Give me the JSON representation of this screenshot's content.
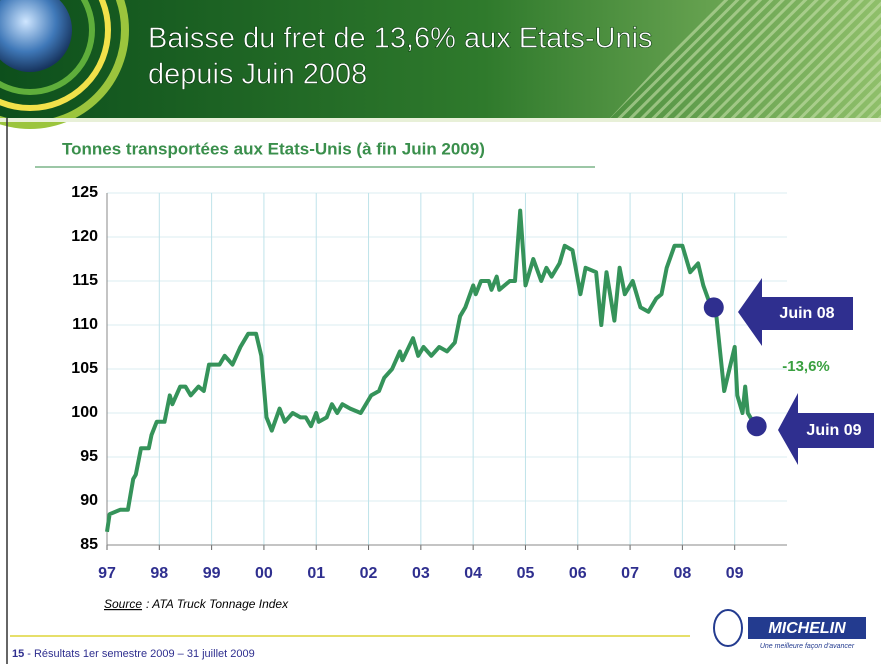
{
  "header": {
    "title_lines": [
      "Baisse du fret de 13,6% aux Etats-Unis",
      "depuis Juin 2008"
    ]
  },
  "chart_data": {
    "type": "line",
    "title": "Tonnes transportées aux Etats-Unis (à fin Juin 2009)",
    "x": [
      1997.0,
      1997.05,
      1997.25,
      1997.4,
      1997.5,
      1997.55,
      1997.65,
      1997.8,
      1997.85,
      1997.95,
      1998.1,
      1998.2,
      1998.25,
      1998.4,
      1998.5,
      1998.6,
      1998.75,
      1998.85,
      1998.95,
      1999.15,
      1999.25,
      1999.4,
      1999.55,
      1999.7,
      1999.85,
      1999.95,
      2000.05,
      2000.15,
      2000.3,
      2000.4,
      2000.55,
      2000.7,
      2000.8,
      2000.9,
      2001.0,
      2001.05,
      2001.2,
      2001.3,
      2001.4,
      2001.5,
      2001.65,
      2001.85,
      2002.05,
      2002.2,
      2002.3,
      2002.45,
      2002.6,
      2002.65,
      2002.85,
      2002.95,
      2003.05,
      2003.2,
      2003.35,
      2003.5,
      2003.65,
      2003.75,
      2003.85,
      2004.0,
      2004.05,
      2004.15,
      2004.3,
      2004.35,
      2004.45,
      2004.5,
      2004.7,
      2004.8,
      2004.9,
      2005.0,
      2005.15,
      2005.3,
      2005.4,
      2005.5,
      2005.65,
      2005.75,
      2005.9,
      2006.05,
      2006.15,
      2006.35,
      2006.45,
      2006.55,
      2006.7,
      2006.8,
      2006.9,
      2007.05,
      2007.2,
      2007.35,
      2007.5,
      2007.6,
      2007.7,
      2007.85,
      2008.0,
      2008.15,
      2008.3,
      2008.4,
      2008.55,
      2008.65,
      2008.8,
      2009.0,
      2009.05,
      2009.15,
      2009.2,
      2009.25,
      2009.4
    ],
    "series": [
      {
        "name": "Truck Tonnage",
        "color": "#35935a",
        "values": [
          86.5,
          88.5,
          89,
          89,
          92.5,
          93,
          96,
          96,
          97.5,
          99,
          99,
          102,
          101,
          103,
          103,
          102,
          103,
          102.5,
          105.5,
          105.5,
          106.5,
          105.5,
          107.5,
          109,
          109,
          106.5,
          99.5,
          98,
          100.5,
          99,
          100,
          99.5,
          99.5,
          98.5,
          100,
          99,
          99.5,
          101,
          100,
          101,
          100.5,
          100,
          102,
          102.5,
          104,
          105,
          107,
          106,
          108.5,
          106.5,
          107.5,
          106.5,
          107.5,
          107,
          108,
          111,
          112,
          114.5,
          113.5,
          115,
          115,
          114,
          115.5,
          114,
          115,
          115,
          123,
          114.5,
          117.5,
          115,
          116.5,
          115.5,
          117,
          119,
          118.5,
          113.5,
          116.5,
          116,
          110,
          116,
          110.5,
          116.5,
          113.5,
          115,
          112,
          111.5,
          113,
          113.5,
          116.5,
          119,
          119,
          116,
          117,
          114.5,
          112,
          111,
          102.5,
          107.5,
          102,
          100,
          103,
          100,
          98.5
        ]
      }
    ],
    "xlim": [
      1997,
      2010
    ],
    "xticks": [
      {
        "value": 1997,
        "label": "97"
      },
      {
        "value": 1998,
        "label": "98"
      },
      {
        "value": 1999,
        "label": "99"
      },
      {
        "value": 2000,
        "label": "00"
      },
      {
        "value": 2001,
        "label": "01"
      },
      {
        "value": 2002,
        "label": "02"
      },
      {
        "value": 2003,
        "label": "03"
      },
      {
        "value": 2004,
        "label": "04"
      },
      {
        "value": 2005,
        "label": "05"
      },
      {
        "value": 2006,
        "label": "06"
      },
      {
        "value": 2007,
        "label": "07"
      },
      {
        "value": 2008,
        "label": "08"
      },
      {
        "value": 2009,
        "label": "09"
      }
    ],
    "ylim": [
      85,
      125
    ],
    "yticks": [
      85,
      90,
      95,
      100,
      105,
      110,
      115,
      120,
      125
    ],
    "grid": true,
    "annotations": [
      {
        "text": "Juin 08",
        "x": 2008.6,
        "y": 112
      },
      {
        "text": "Juin 09",
        "x": 2009.42,
        "y": 98.5
      },
      {
        "text": "-13,6%"
      }
    ]
  },
  "source": {
    "label": "Source",
    "text": ": ATA Truck Tonnage Index"
  },
  "logo": {
    "name": "MICHELIN",
    "tagline": "Une meilleure façon d'avancer"
  },
  "footer": {
    "page": "15",
    "text": "- Résultats 1er semestre  2009 – 31 juillet 2009"
  }
}
